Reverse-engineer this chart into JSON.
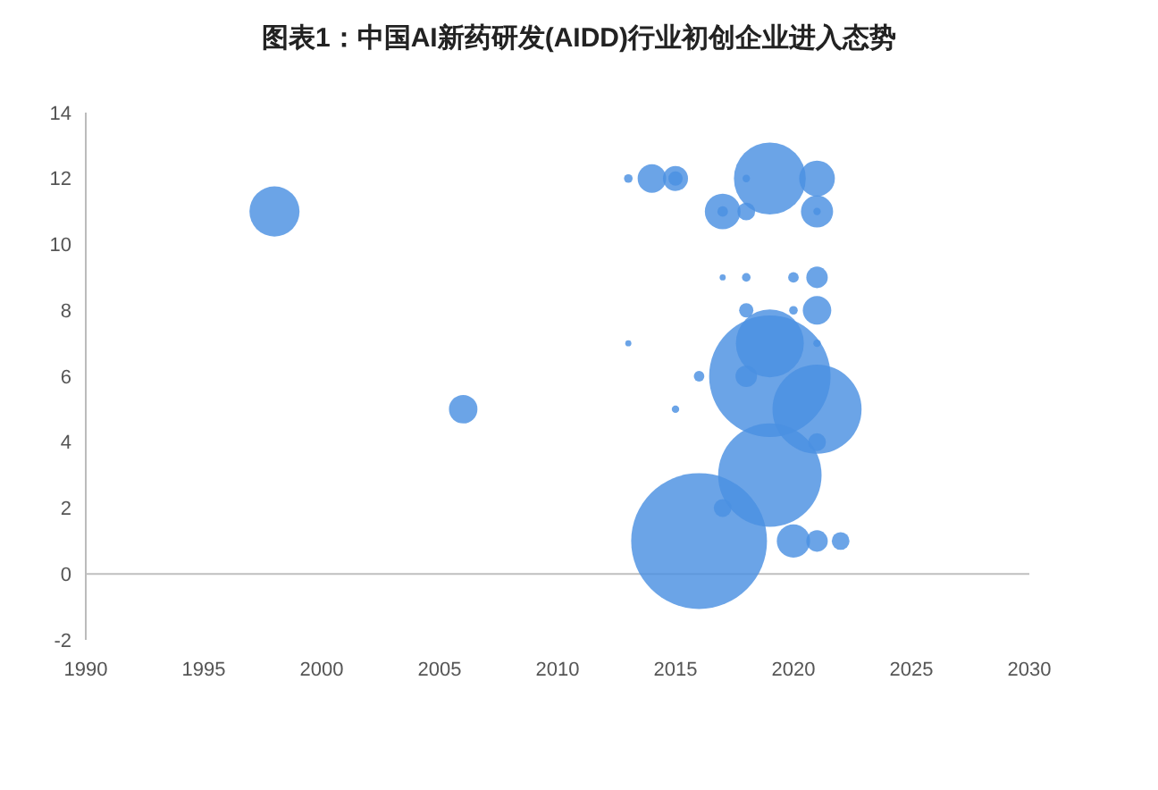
{
  "chart_data": {
    "type": "bubble",
    "title": "图表1：中国AI新药研发(AIDD)行业初创企业进入态势",
    "xlim": [
      1990,
      2030
    ],
    "xticks": [
      1990,
      1995,
      2000,
      2005,
      2010,
      2015,
      2020,
      2025,
      2030
    ],
    "ylim": [
      -2,
      14
    ],
    "yticks": [
      -2,
      0,
      2,
      4,
      6,
      8,
      10,
      12,
      14
    ],
    "ref_lines": [
      {
        "axis": "y",
        "value": 0,
        "color": "#bfbfbf"
      }
    ],
    "series": [
      {
        "color": "#4a90e2",
        "x": [
          2016,
          2019,
          2019,
          2021,
          2019,
          2019,
          1998,
          2021,
          2017,
          2020,
          2021,
          2006,
          2014,
          2021,
          2015,
          2021,
          2021,
          2018,
          2018,
          2022,
          2017,
          2021,
          2015,
          2018,
          2017,
          2020,
          2016,
          2013,
          2018,
          2020,
          2018,
          2021,
          2015,
          2021,
          2013,
          2017
        ],
        "values": [
          1,
          6,
          3,
          5,
          12,
          7,
          11,
          12,
          11,
          1,
          11,
          5,
          12,
          8,
          12,
          9,
          1,
          6,
          11,
          1,
          2,
          4,
          12,
          8,
          11,
          9,
          6,
          12,
          9,
          8,
          12,
          11,
          5,
          7,
          7,
          9
        ],
        "sizes": [
          1,
          0.8,
          0.58,
          0.43,
          0.28,
          0.25,
          0.136,
          0.069,
          0.069,
          0.06,
          0.056,
          0.044,
          0.044,
          0.044,
          0.034,
          0.025,
          0.025,
          0.025,
          0.017,
          0.017,
          0.017,
          0.017,
          0.011,
          0.011,
          0.006,
          0.006,
          0.006,
          0.004,
          0.004,
          0.004,
          0.003,
          0.003,
          0.003,
          0.003,
          0.002,
          0.002
        ]
      }
    ]
  }
}
